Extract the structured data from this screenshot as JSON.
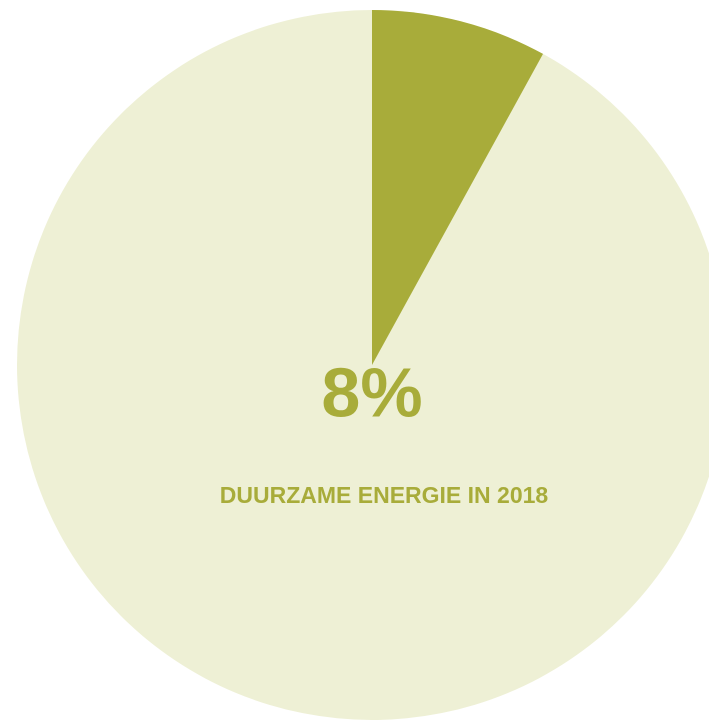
{
  "chart_data": {
    "type": "pie",
    "values": [
      8
    ],
    "value_labels": [
      "8%"
    ],
    "label": "DUURZAME ENERGIE IN 2018",
    "color": "#a8ac3a",
    "background_color": "#eef0d5"
  }
}
